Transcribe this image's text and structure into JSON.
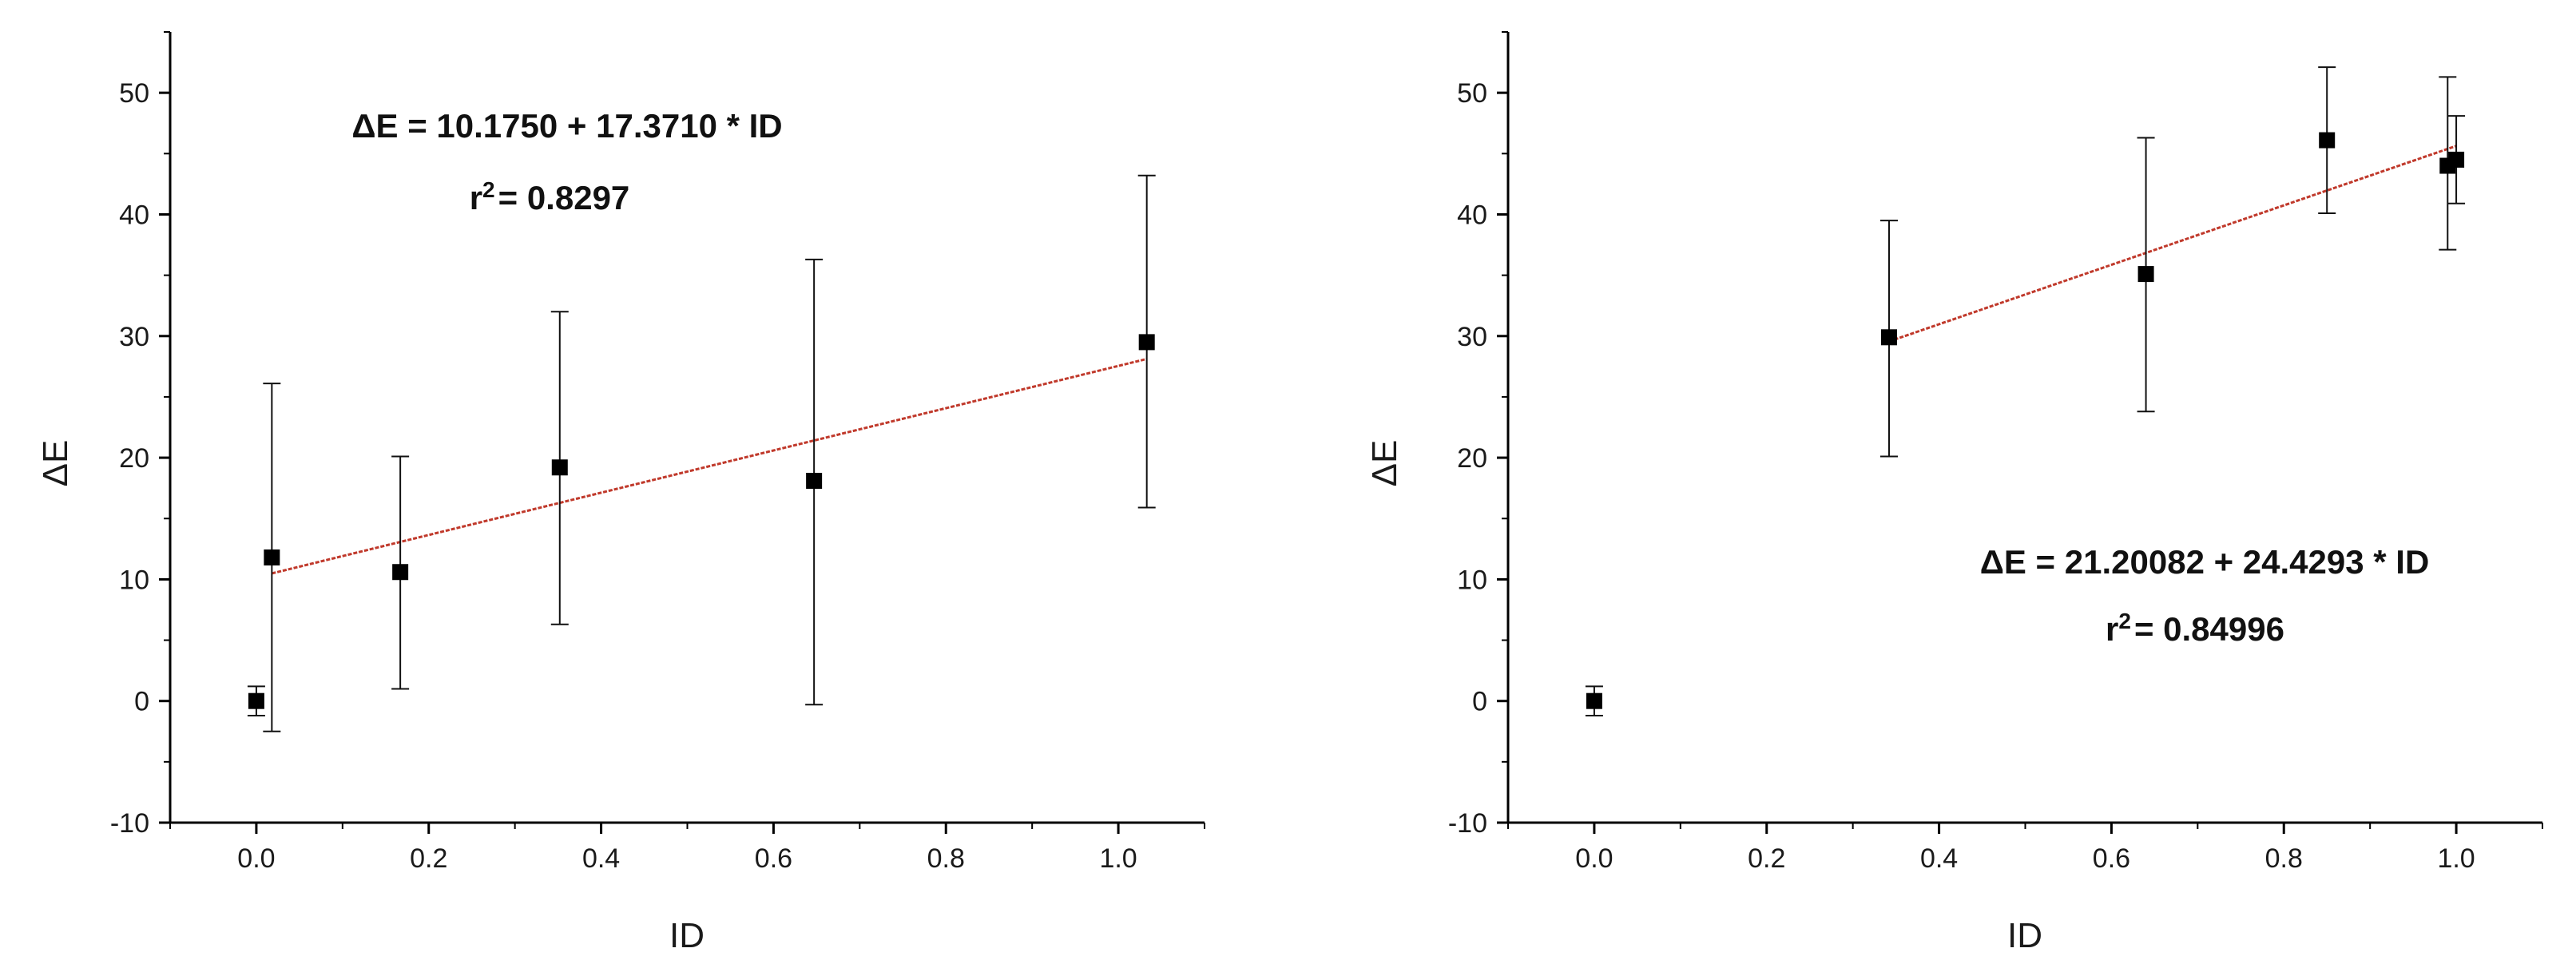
{
  "chart_data": [
    {
      "type": "scatter",
      "xlabel": "ID",
      "ylabel": "ΔE",
      "xlim": [
        -0.1,
        1.1
      ],
      "ylim": [
        -10,
        55
      ],
      "xticks": [
        0.0,
        0.2,
        0.4,
        0.6,
        0.8,
        1.0
      ],
      "xtick_labels": [
        "0.0",
        "0.2",
        "0.4",
        "0.6",
        "0.8",
        "1.0"
      ],
      "yticks": [
        -10,
        0,
        10,
        20,
        30,
        40,
        50
      ],
      "ytick_labels": [
        "-10",
        "0",
        "10",
        "20",
        "30",
        "40",
        "50"
      ],
      "grid": false,
      "series": [
        {
          "points": [
            {
              "x": 0.0,
              "y": 0.0,
              "err_low": -1.2,
              "err_high": 1.2
            },
            {
              "x": 0.018,
              "y": 11.8,
              "err_low": -2.5,
              "err_high": 26.1
            },
            {
              "x": 0.167,
              "y": 10.6,
              "err_low": 1.0,
              "err_high": 20.1
            },
            {
              "x": 0.352,
              "y": 19.2,
              "err_low": 6.3,
              "err_high": 32.0
            },
            {
              "x": 0.647,
              "y": 18.1,
              "err_low": -0.3,
              "err_high": 36.3
            },
            {
              "x": 1.033,
              "y": 29.5,
              "err_low": 15.9,
              "err_high": 43.2
            }
          ]
        }
      ],
      "fit_line": {
        "intercept": 10.175,
        "slope": 17.371,
        "x_range": [
          0.018,
          1.033
        ],
        "color": "#c0392b"
      },
      "annotation": {
        "equation": "ΔE = 10.1750 + 17.3710 * ID",
        "r2_prefix": "r",
        "r2_sup": "2",
        "r2_value": "= 0.8297"
      }
    },
    {
      "type": "scatter",
      "xlabel": "ID",
      "ylabel": "ΔE",
      "xlim": [
        -0.1,
        1.1
      ],
      "ylim": [
        -10,
        55
      ],
      "xticks": [
        0.0,
        0.2,
        0.4,
        0.6,
        0.8,
        1.0
      ],
      "xtick_labels": [
        "0.0",
        "0.2",
        "0.4",
        "0.6",
        "0.8",
        "1.0"
      ],
      "yticks": [
        -10,
        0,
        10,
        20,
        30,
        40,
        50
      ],
      "ytick_labels": [
        "-10",
        "0",
        "10",
        "20",
        "30",
        "40",
        "50"
      ],
      "grid": false,
      "series": [
        {
          "points": [
            {
              "x": 0.0,
              "y": 0.0,
              "err_low": -1.2,
              "err_high": 1.2
            },
            {
              "x": 0.342,
              "y": 29.9,
              "err_low": 20.1,
              "err_high": 39.5
            },
            {
              "x": 0.64,
              "y": 35.1,
              "err_low": 23.8,
              "err_high": 46.3
            },
            {
              "x": 0.85,
              "y": 46.1,
              "err_low": 40.1,
              "err_high": 52.1
            },
            {
              "x": 0.99,
              "y": 44.0,
              "err_low": 37.1,
              "err_high": 51.3
            },
            {
              "x": 1.0,
              "y": 44.5,
              "err_low": 40.9,
              "err_high": 48.1
            }
          ]
        }
      ],
      "fit_line": {
        "intercept": 21.20082,
        "slope": 24.4293,
        "x_range": [
          0.342,
          1.0
        ],
        "color": "#c0392b"
      },
      "annotation": {
        "equation": "ΔE = 21.20082 + 24.4293 * ID",
        "r2_prefix": "r",
        "r2_sup": "2",
        "r2_value": "= 0.84996"
      }
    }
  ]
}
